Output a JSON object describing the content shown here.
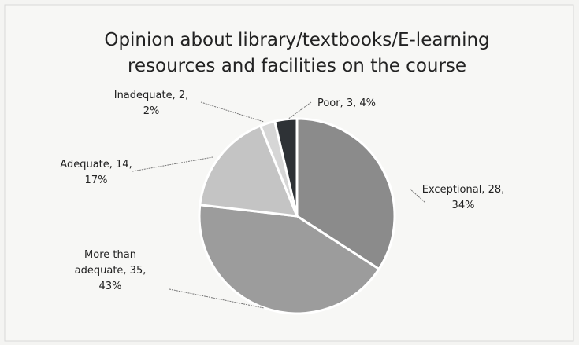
{
  "chart_data": {
    "type": "pie",
    "title": "Opinion about library/textbooks/E-learning resources and facilities on the course",
    "values": [
      28,
      35,
      14,
      2,
      3
    ],
    "value_labels": [
      [
        "Exceptional, 28,",
        "34%"
      ],
      [
        "More than",
        "adequate, 35,",
        "43%"
      ],
      [
        "Adequate, 14,",
        "17%"
      ],
      [
        "Inadequate, 2,",
        "2%"
      ],
      [
        "Poor, 3, 4%"
      ]
    ],
    "colors": [
      "#8b8b8b",
      "#9c9c9c",
      "#c4c4c4",
      "#d6d6d6",
      "#2e3236"
    ]
  }
}
